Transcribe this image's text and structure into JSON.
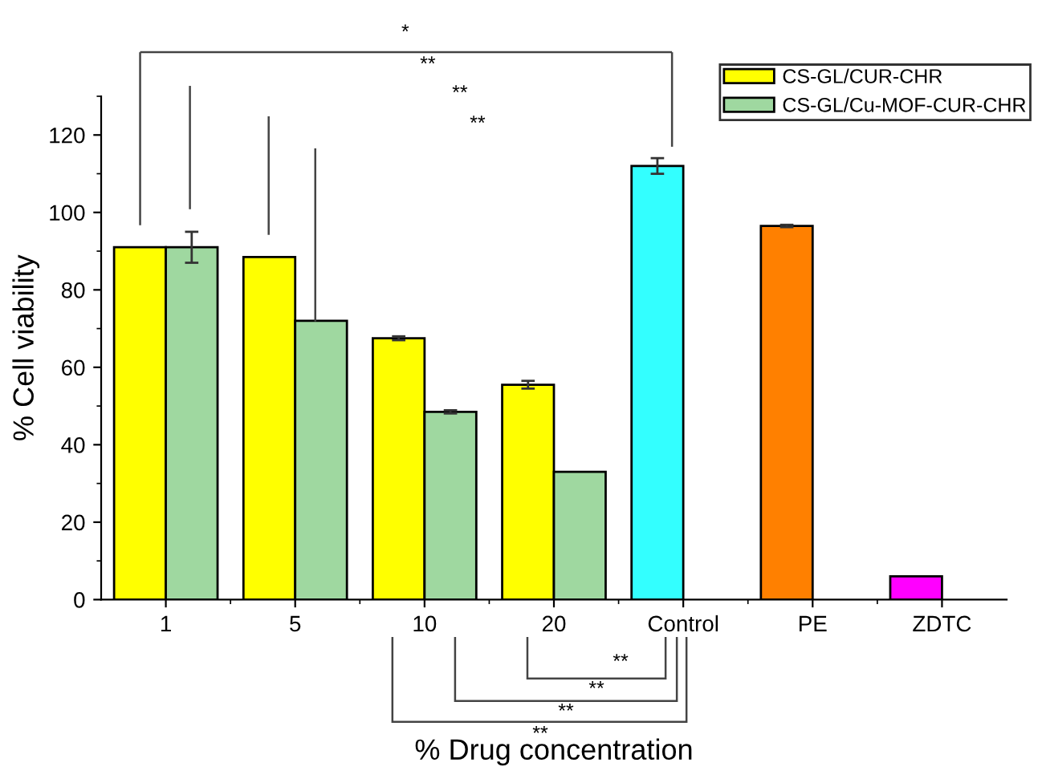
{
  "chart_data": {
    "type": "bar",
    "xlabel": "% Drug concentration",
    "ylabel": "% Cell viability",
    "categories": [
      "1",
      "5",
      "10",
      "20",
      "Control",
      "PE",
      "ZDTC"
    ],
    "series": [
      {
        "name": "CS-GL/CUR-CHR",
        "color": "#ffff00",
        "values": [
          91,
          88.5,
          67.5,
          55.5,
          null,
          null,
          null
        ],
        "errors": [
          null,
          null,
          0.5,
          1,
          null,
          null,
          null
        ]
      },
      {
        "name": "CS-GL/Cu-MOF-CUR-CHR",
        "color": "#9fd8a0",
        "values": [
          91,
          72,
          48.5,
          33,
          null,
          null,
          null
        ],
        "errors": [
          4,
          null,
          0.4,
          null,
          null,
          null,
          null
        ]
      },
      {
        "colors": [
          "#33ffff",
          "#33ffff",
          "#33ffff",
          "#33ffff",
          "#33ffff",
          "#ff8000",
          "#ff00ff"
        ],
        "values": [
          null,
          null,
          null,
          null,
          112,
          96.5,
          6
        ],
        "errors": [
          null,
          null,
          null,
          null,
          2,
          0.3,
          null
        ]
      }
    ],
    "ylim": [
      0,
      130
    ],
    "yticks": [
      0,
      20,
      40,
      60,
      80,
      100,
      120
    ],
    "annotations": [
      "*",
      "**",
      "**",
      "**",
      "**",
      "**",
      "**",
      "**"
    ],
    "legend": "top right",
    "grid": false
  }
}
